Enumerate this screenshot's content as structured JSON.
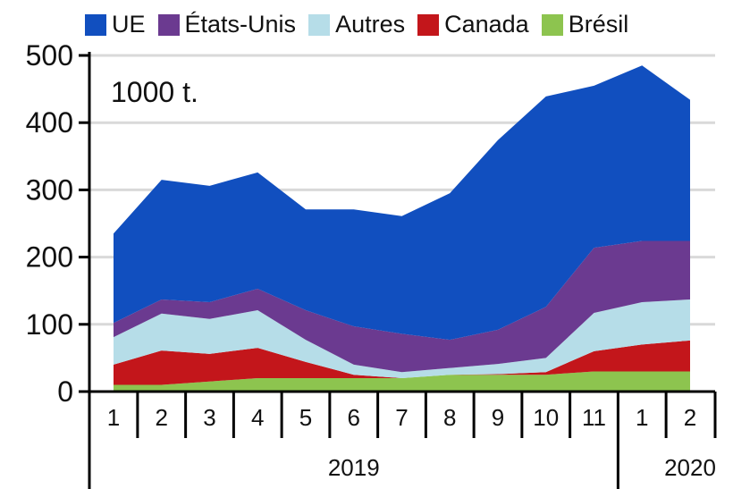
{
  "chart_data": {
    "type": "area",
    "stacked": true,
    "unit_label": "1000 t.",
    "categories": [
      "1",
      "2",
      "3",
      "4",
      "5",
      "6",
      "7",
      "8",
      "9",
      "10",
      "11",
      "1",
      "2"
    ],
    "year_labels": [
      {
        "label": "2019",
        "span": [
          0,
          10
        ]
      },
      {
        "label": "2020",
        "span": [
          11,
          12
        ]
      }
    ],
    "ylim": [
      0,
      500
    ],
    "yticks": [
      0,
      100,
      200,
      300,
      400,
      500
    ],
    "grid": true,
    "legend": "top",
    "series": [
      {
        "name": "Brésil",
        "color": "#8dc44f",
        "values": [
          10,
          10,
          15,
          20,
          20,
          20,
          20,
          25,
          25,
          25,
          30,
          30,
          30
        ]
      },
      {
        "name": "Canada",
        "color": "#c3161b",
        "values": [
          30,
          51,
          41,
          45,
          24,
          5,
          0,
          0,
          1,
          4,
          30,
          40,
          46
        ]
      },
      {
        "name": "Autres",
        "color": "#b6dde8",
        "values": [
          41,
          55,
          52,
          56,
          33,
          15,
          9,
          10,
          15,
          21,
          57,
          63,
          61
        ]
      },
      {
        "name": "États-Unis",
        "color": "#6b3a90",
        "values": [
          21,
          21,
          25,
          32,
          44,
          57,
          57,
          42,
          51,
          76,
          97,
          91,
          87
        ]
      },
      {
        "name": "UE",
        "color": "#114fbf",
        "values": [
          133,
          178,
          173,
          173,
          150,
          174,
          175,
          218,
          282,
          313,
          241,
          261,
          210
        ]
      }
    ],
    "legend_order": [
      "UE",
      "États-Unis",
      "Autres",
      "Canada",
      "Brésil"
    ]
  }
}
